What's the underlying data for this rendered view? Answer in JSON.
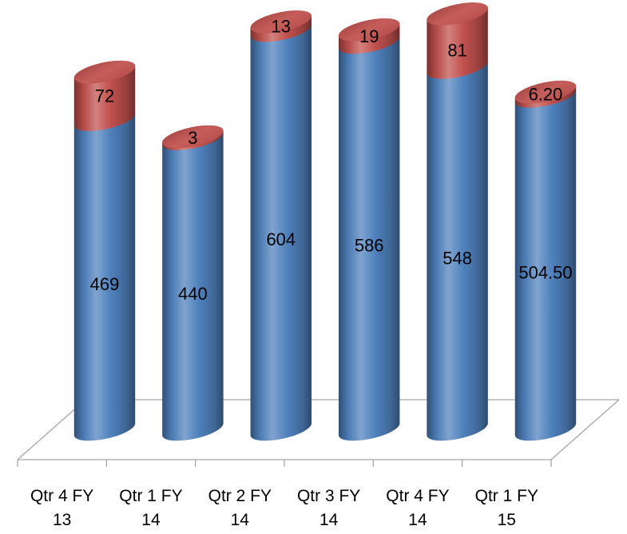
{
  "chart_data": {
    "type": "bar",
    "stacked": true,
    "style": "3d-cylinder",
    "categories": [
      "Qtr 4 FY 13",
      "Qtr 1 FY 14",
      "Qtr 2 FY 14",
      "Qtr 3 FY 14",
      "Qtr 4 FY 14",
      "Qtr 1 FY 15"
    ],
    "series": [
      {
        "values": [
          469,
          440,
          604,
          586,
          548,
          504.5
        ],
        "data_labels": [
          "469",
          "440",
          "604",
          "586",
          "548",
          "504.50"
        ],
        "color": "#4F81BD"
      },
      {
        "values": [
          72,
          3,
          13,
          19,
          81,
          6.2
        ],
        "data_labels": [
          "72",
          "3",
          "13",
          "19",
          "81",
          "6.20"
        ],
        "color": "#C0504D"
      }
    ],
    "grid": false,
    "legend": "none"
  }
}
